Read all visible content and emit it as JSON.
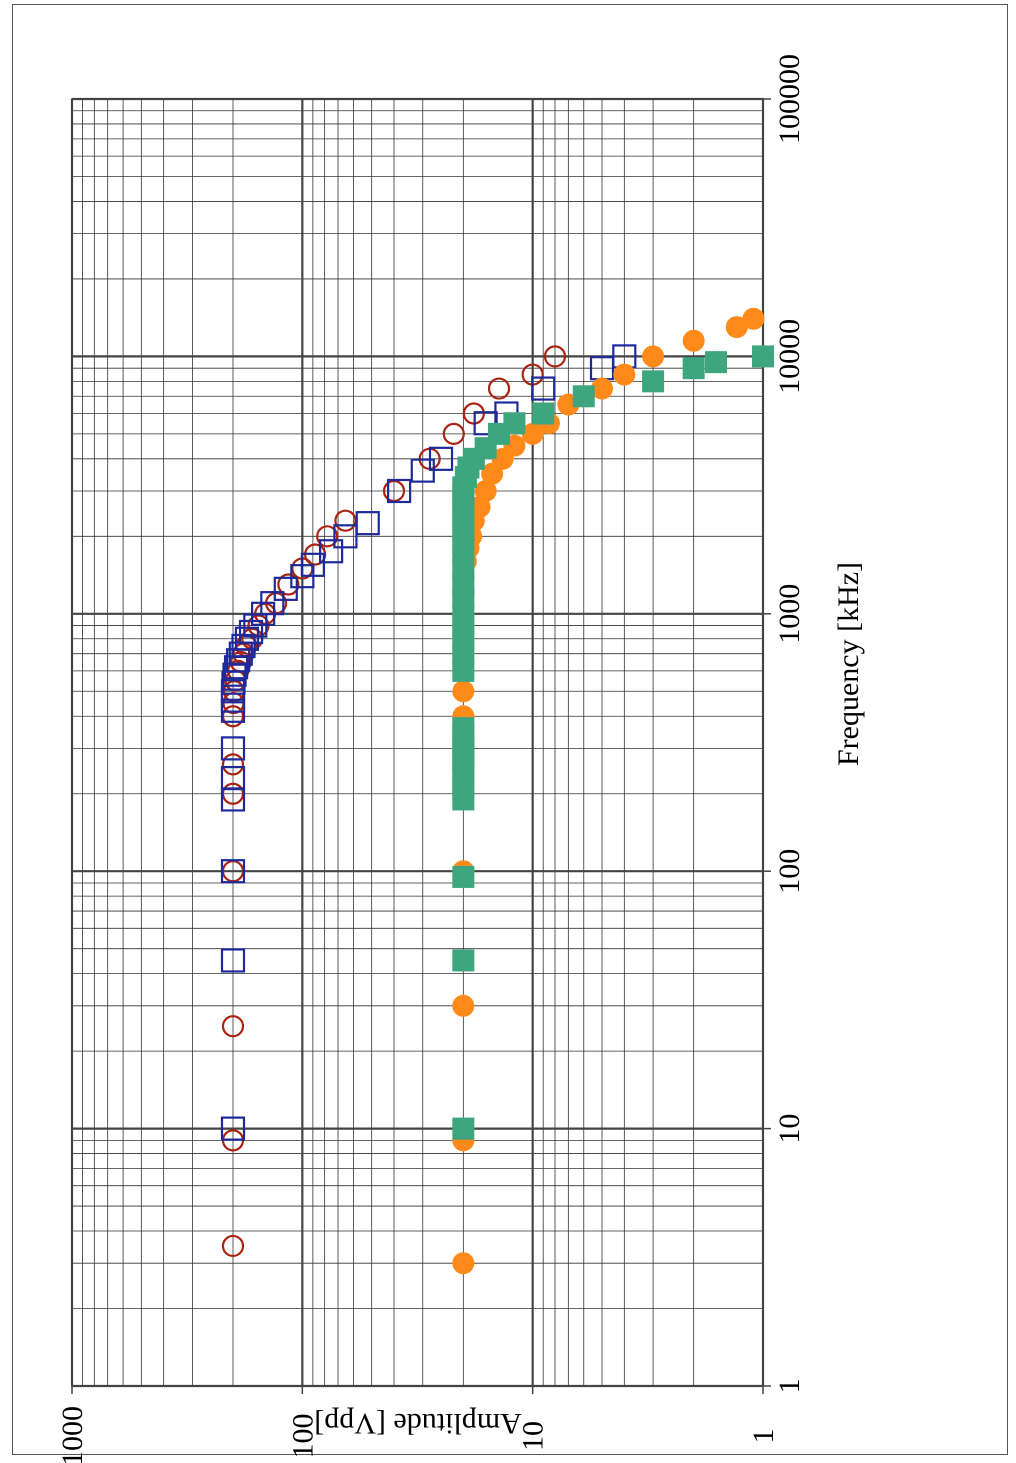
{
  "chart_data": {
    "type": "scatter",
    "title": "",
    "xlabel": "Frequency [kHz]",
    "ylabel": "Amplitude [Vpp]",
    "xscale": "log",
    "yscale": "log",
    "xlim": [
      1,
      100000
    ],
    "ylim": [
      1,
      1000
    ],
    "x_ticks": [
      "1",
      "10",
      "100",
      "1000",
      "10000",
      "100000"
    ],
    "y_ticks": [
      "1000",
      "100",
      "10",
      "1"
    ],
    "grid": true,
    "legend": "none",
    "series": [
      {
        "color": "#aa2211",
        "marker": "circle-open",
        "x": [
          3.5,
          9,
          25,
          100,
          200,
          260,
          400,
          450,
          500,
          550,
          600,
          650,
          700,
          750,
          800,
          900,
          1000,
          1100,
          1300,
          1500,
          1700,
          2000,
          2300,
          3000,
          4000,
          5000,
          6000,
          7500,
          8500,
          10000
        ],
        "y": [
          200,
          200,
          200,
          200,
          200,
          200,
          200,
          199,
          198,
          195,
          190,
          185,
          180,
          175,
          165,
          155,
          145,
          130,
          115,
          100,
          88,
          78,
          65,
          40,
          28,
          22,
          18,
          14,
          10,
          8
        ]
      },
      {
        "color": "#1e2a99",
        "marker": "square-open",
        "x": [
          10,
          45,
          100,
          190,
          230,
          300,
          420,
          460,
          500,
          540,
          580,
          620,
          660,
          700,
          750,
          800,
          850,
          900,
          1000,
          1100,
          1250,
          1400,
          1550,
          1750,
          2000,
          2250,
          3000,
          3600,
          4000,
          5500,
          6000,
          7500,
          9000,
          10000
        ],
        "y": [
          200,
          200,
          200,
          200,
          200,
          200,
          200,
          200,
          200,
          199,
          197,
          194,
          190,
          185,
          180,
          174,
          167,
          160,
          148,
          135,
          118,
          100,
          90,
          75,
          65,
          52,
          38,
          30,
          25,
          16,
          13,
          9,
          5,
          4
        ]
      },
      {
        "color": "#ff8a19",
        "marker": "circle-filled",
        "x": [
          3,
          9,
          30,
          100,
          200,
          250,
          300,
          400,
          500,
          600,
          700,
          800,
          900,
          1000,
          1200,
          1400,
          1600,
          1800,
          2000,
          2300,
          2600,
          3000,
          3500,
          4000,
          4500,
          5000,
          5500,
          6500,
          7500,
          8500,
          10000,
          11500,
          13000,
          14000
        ],
        "y": [
          20,
          20,
          20,
          20,
          20,
          20,
          20,
          20,
          20,
          20,
          20,
          20,
          20,
          20,
          20,
          20,
          19.5,
          19,
          18.5,
          18,
          17,
          16,
          15,
          13.5,
          12,
          10,
          8.5,
          7,
          5,
          4,
          3,
          2,
          1.3,
          1.1
        ]
      },
      {
        "color": "#3ea67e",
        "marker": "square-filled",
        "x": [
          10,
          45,
          95,
          190,
          210,
          230,
          250,
          270,
          290,
          310,
          340,
          360,
          600,
          700,
          800,
          900,
          1000,
          1150,
          1300,
          1500,
          1700,
          1900,
          2100,
          2300,
          2500,
          2700,
          2900,
          3100,
          3400,
          3700,
          4000,
          4400,
          5000,
          5500,
          6000,
          7000,
          8000,
          9000,
          9500,
          10000
        ],
        "y": [
          20,
          20,
          20,
          20,
          20,
          20,
          20,
          20,
          20,
          20,
          20,
          20,
          20,
          20,
          20,
          20,
          20,
          20,
          20,
          20,
          20,
          20,
          20,
          20,
          20,
          20,
          20,
          20,
          19.5,
          19,
          18,
          16,
          14,
          12,
          9,
          6,
          3,
          2,
          1.6,
          1
        ]
      }
    ]
  }
}
